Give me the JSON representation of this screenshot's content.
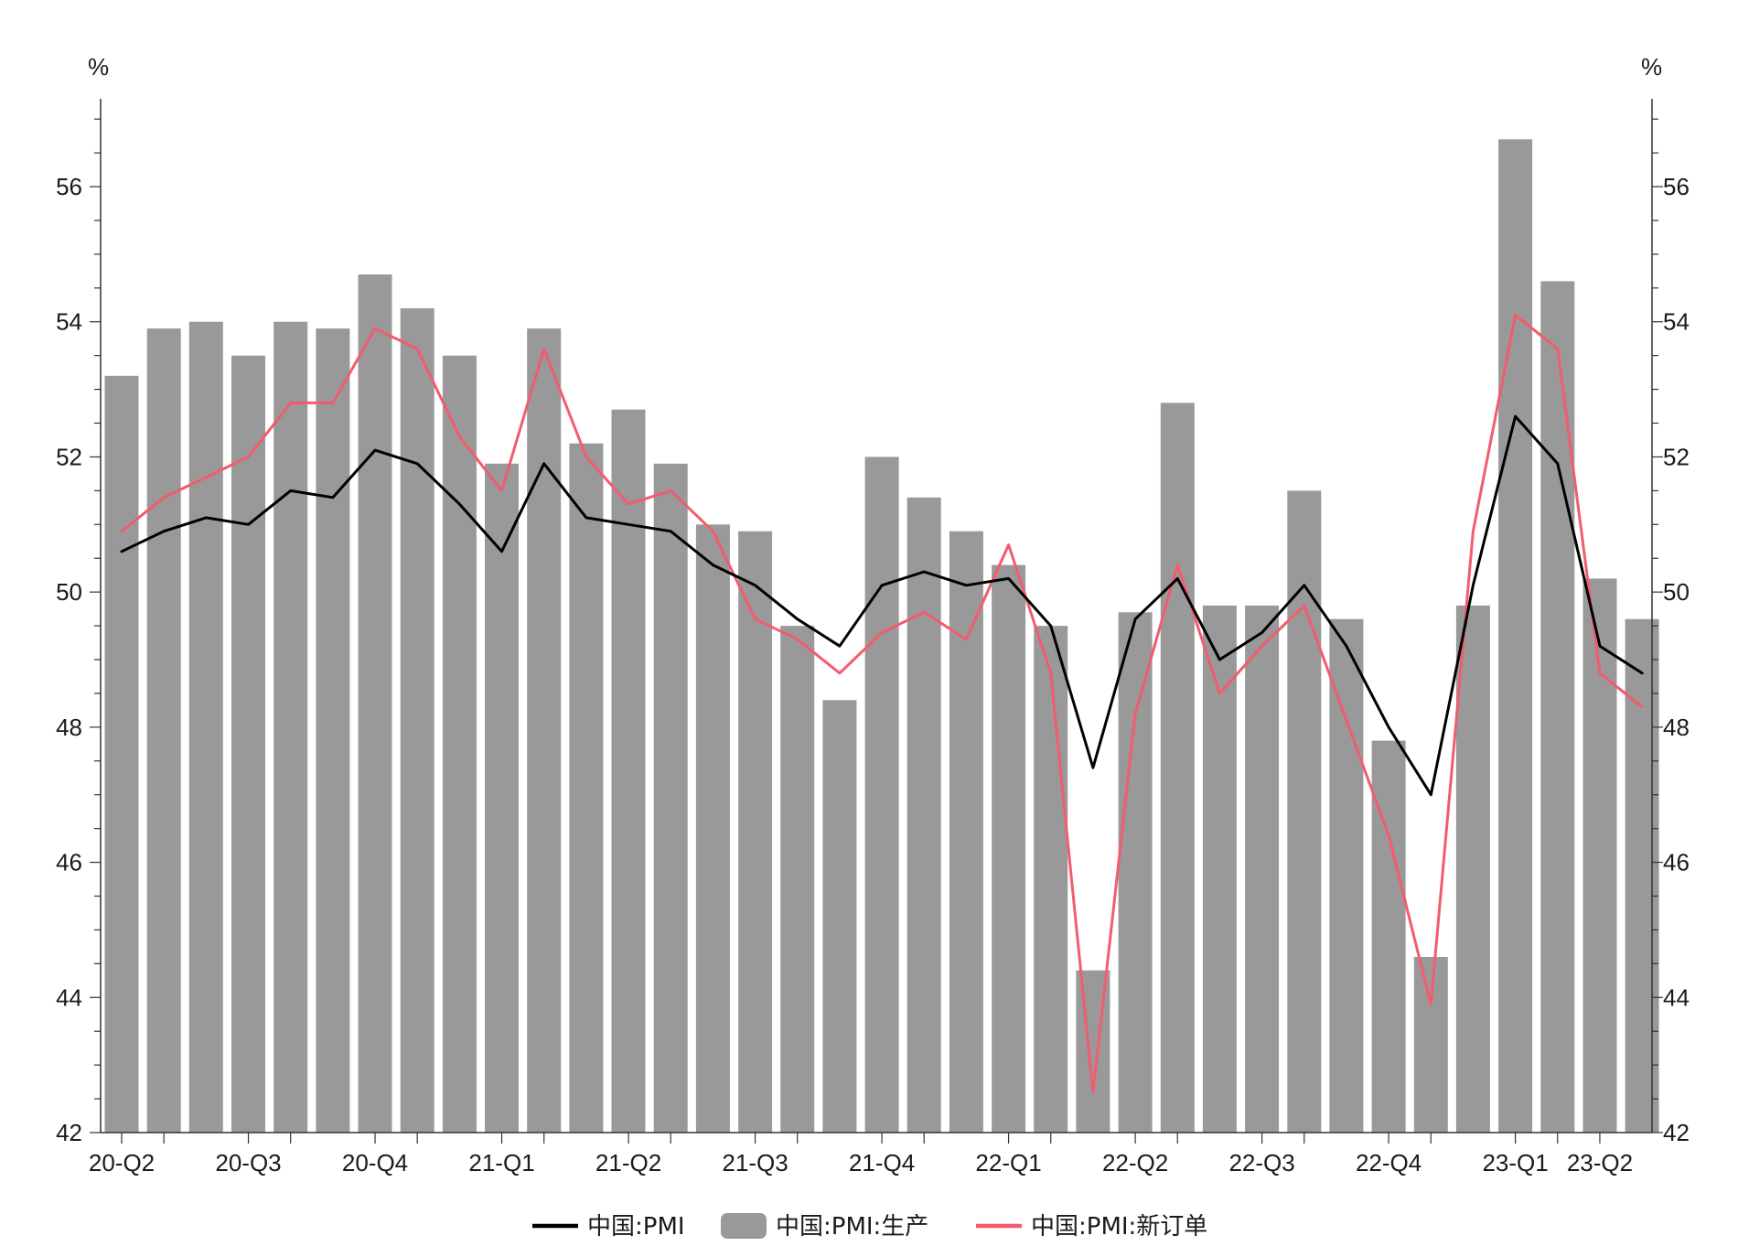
{
  "chart_data": {
    "type": "bar",
    "x_labels": [
      "20-Q2",
      "",
      "",
      "20-Q3",
      "",
      "",
      "20-Q4",
      "",
      "",
      "21-Q1",
      "",
      "",
      "21-Q2",
      "",
      "",
      "21-Q3",
      "",
      "",
      "21-Q4",
      "",
      "",
      "22-Q1",
      "",
      "",
      "22-Q2",
      "",
      "",
      "22-Q3",
      "",
      "",
      "22-Q4",
      "",
      "",
      "23-Q1",
      "",
      "23-Q2"
    ],
    "ylim": [
      42,
      57.3
    ],
    "y_ticks": [
      42,
      44,
      46,
      48,
      50,
      52,
      54,
      56
    ],
    "y_unit_left": "%",
    "y_unit_right": "%",
    "legend_position": "bottom",
    "series": [
      {
        "name": "中国:PMI:生产",
        "type": "bar",
        "color": "#999999",
        "values": [
          53.2,
          53.9,
          54.0,
          53.5,
          54.0,
          53.9,
          54.7,
          54.2,
          53.5,
          51.9,
          53.9,
          52.2,
          52.7,
          51.9,
          51.0,
          50.9,
          49.5,
          48.4,
          52.0,
          51.4,
          50.9,
          50.4,
          49.5,
          44.4,
          49.7,
          52.8,
          49.8,
          49.8,
          51.5,
          49.6,
          47.8,
          44.6,
          49.8,
          56.7,
          54.6,
          50.2,
          49.6
        ]
      },
      {
        "name": "中国:PMI",
        "type": "line",
        "color": "#000000",
        "values": [
          50.6,
          50.9,
          51.1,
          51.0,
          51.5,
          51.4,
          52.1,
          51.9,
          51.3,
          50.6,
          51.9,
          51.1,
          51.0,
          50.9,
          50.4,
          50.1,
          49.6,
          49.2,
          50.1,
          50.3,
          50.1,
          50.2,
          49.5,
          47.4,
          49.6,
          50.2,
          49.0,
          49.4,
          50.1,
          49.2,
          48.0,
          47.0,
          50.1,
          52.6,
          51.9,
          49.2,
          48.8
        ]
      },
      {
        "name": "中国:PMI:新订单",
        "type": "line",
        "color": "#f25c6e",
        "values": [
          50.9,
          51.4,
          51.7,
          52.0,
          52.8,
          52.8,
          53.9,
          53.6,
          52.3,
          51.5,
          53.6,
          52.0,
          51.3,
          51.5,
          50.9,
          49.6,
          49.3,
          48.8,
          49.4,
          49.7,
          49.3,
          50.7,
          48.8,
          42.6,
          48.2,
          50.4,
          48.5,
          49.2,
          49.8,
          48.1,
          46.4,
          43.9,
          50.9,
          54.1,
          53.6,
          48.8,
          48.3
        ]
      }
    ]
  }
}
